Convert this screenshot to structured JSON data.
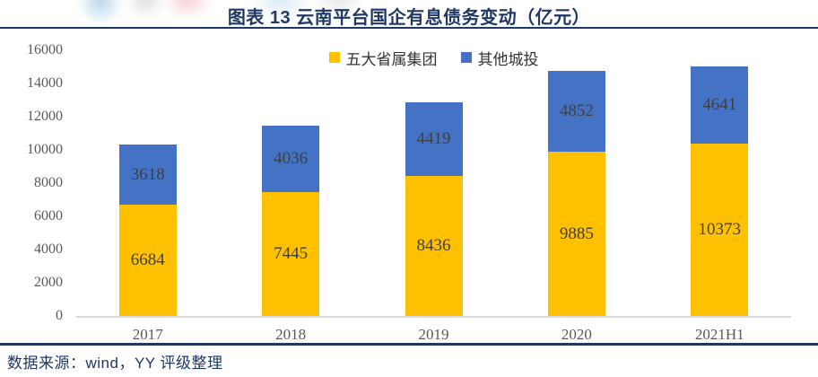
{
  "header": {
    "title": "图表 13  云南平台国企有息债务变动（亿元）"
  },
  "footer": {
    "source": "数据来源：wind，YY 评级整理"
  },
  "colors": {
    "series_provincial": "#FFC000",
    "series_other": "#4472C4",
    "navy": "#1F3864",
    "axis_line": "#D9D9D9",
    "tick_text": "#595959",
    "data_label": "#404040"
  },
  "chart_data": {
    "type": "bar",
    "stacked": true,
    "title": "图表 13  云南平台国企有息债务变动（亿元）",
    "categories": [
      "2017",
      "2018",
      "2019",
      "2020",
      "2021H1"
    ],
    "series": [
      {
        "name": "五大省属集团",
        "color_key": "series_provincial",
        "values": [
          6684,
          7445,
          8436,
          9885,
          10373
        ]
      },
      {
        "name": "其他城投",
        "color_key": "series_other",
        "values": [
          3618,
          4036,
          4419,
          4852,
          4641
        ]
      }
    ],
    "xlabel": "",
    "ylabel": "",
    "ylim": [
      0,
      16000
    ],
    "ytick_step": 2000,
    "grid": false,
    "legend_position": "top-center"
  }
}
